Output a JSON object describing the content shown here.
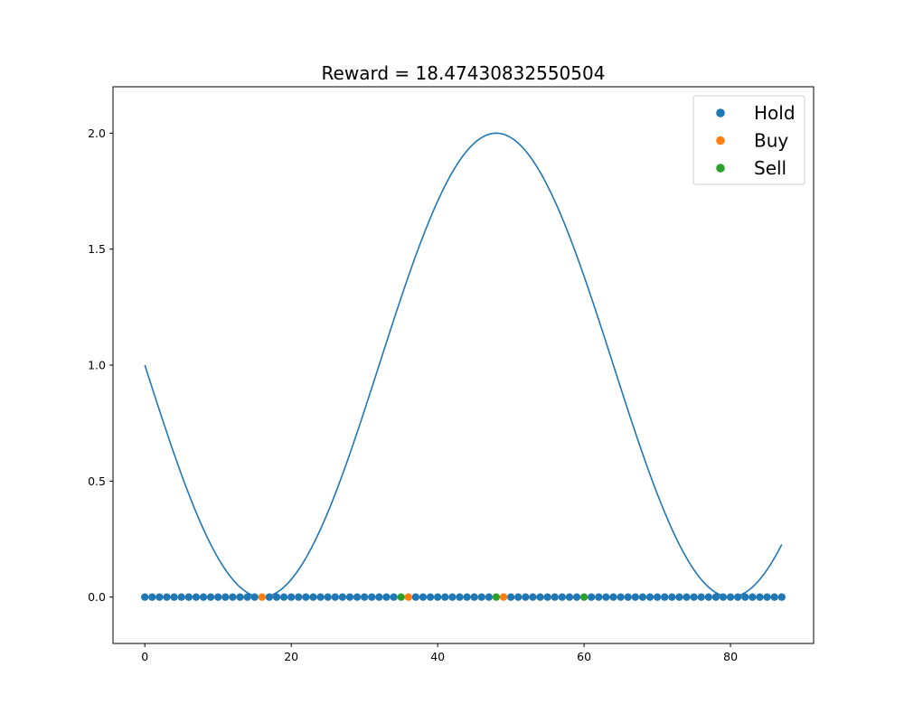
{
  "chart_data": {
    "type": "scatter",
    "title": "Reward = 18.47430832550504",
    "xlabel": "",
    "ylabel": "",
    "xlim": [
      -4.35,
      91.35
    ],
    "ylim": [
      -0.2,
      2.2
    ],
    "xticks": [
      0,
      20,
      40,
      60,
      80
    ],
    "yticks": [
      0.0,
      0.5,
      1.0,
      1.5,
      2.0
    ],
    "xtick_labels": [
      "0",
      "20",
      "40",
      "60",
      "80"
    ],
    "ytick_labels": [
      "0.0",
      "0.5",
      "1.0",
      "1.5",
      "2.0"
    ],
    "grid": false,
    "legend_position": "top-right",
    "line": {
      "color": "#1f77b4",
      "formula": "1 + sin((x - 32) * 0.09817)",
      "x_range": [
        0,
        87
      ]
    },
    "series": [
      {
        "name": "Hold",
        "color": "#1f77b4",
        "x": [
          0,
          1,
          2,
          3,
          4,
          5,
          6,
          7,
          8,
          9,
          10,
          11,
          12,
          13,
          14,
          15,
          17,
          18,
          19,
          20,
          21,
          22,
          23,
          24,
          25,
          26,
          27,
          28,
          29,
          30,
          31,
          32,
          33,
          34,
          37,
          38,
          39,
          40,
          41,
          42,
          43,
          44,
          45,
          46,
          47,
          50,
          51,
          52,
          53,
          54,
          55,
          56,
          57,
          58,
          59,
          61,
          62,
          63,
          64,
          65,
          66,
          67,
          68,
          69,
          70,
          71,
          72,
          73,
          74,
          75,
          76,
          77,
          78,
          79,
          80,
          81,
          82,
          83,
          84,
          85,
          86,
          87
        ],
        "y_value": 0
      },
      {
        "name": "Buy",
        "color": "#ff7f0e",
        "x": [
          16,
          36,
          49
        ],
        "y_value": 0
      },
      {
        "name": "Sell",
        "color": "#2ca02c",
        "x": [
          35,
          48,
          60
        ],
        "y_value": 0
      }
    ]
  }
}
